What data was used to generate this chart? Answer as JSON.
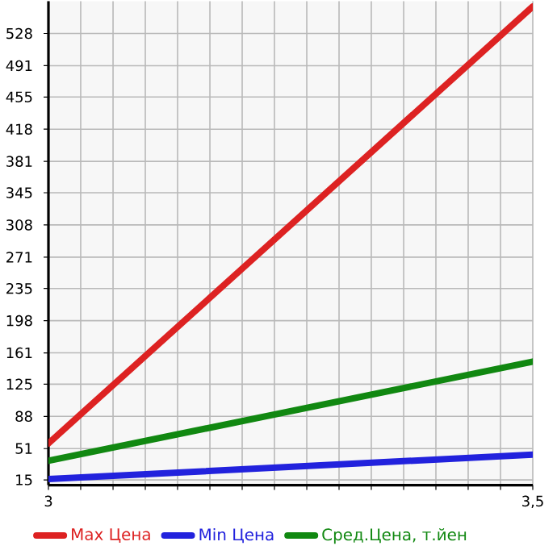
{
  "chart_data": {
    "type": "line",
    "x": [
      3,
      3.5
    ],
    "series": [
      {
        "name": "Max Цена",
        "color": "#dd2222",
        "values": [
          57,
          559
        ]
      },
      {
        "name": "Min Цена",
        "color": "#2222dd",
        "values": [
          16,
          44
        ]
      },
      {
        "name": "Сред.Цена, т.йен",
        "color": "#118811",
        "values": [
          37,
          151
        ]
      }
    ],
    "xlim": [
      3,
      3.5
    ],
    "ylim": [
      9,
      565
    ],
    "xticks": [
      {
        "value": 3,
        "label": "3"
      },
      {
        "value": 3.0333,
        "label": null
      },
      {
        "value": 3.0667,
        "label": null
      },
      {
        "value": 3.1,
        "label": null
      },
      {
        "value": 3.1333,
        "label": null
      },
      {
        "value": 3.1667,
        "label": null
      },
      {
        "value": 3.2,
        "label": null
      },
      {
        "value": 3.2333,
        "label": null
      },
      {
        "value": 3.2667,
        "label": null
      },
      {
        "value": 3.3,
        "label": null
      },
      {
        "value": 3.3333,
        "label": null
      },
      {
        "value": 3.3667,
        "label": null
      },
      {
        "value": 3.4,
        "label": null
      },
      {
        "value": 3.4333,
        "label": null
      },
      {
        "value": 3.4667,
        "label": null
      },
      {
        "value": 3.5,
        "label": "3,5"
      }
    ],
    "yticks": [
      15,
      51,
      88,
      125,
      161,
      198,
      235,
      271,
      308,
      345,
      381,
      418,
      455,
      491,
      528
    ],
    "grid": true,
    "legend": "bottom",
    "marker": "none",
    "line_style": "solid"
  }
}
